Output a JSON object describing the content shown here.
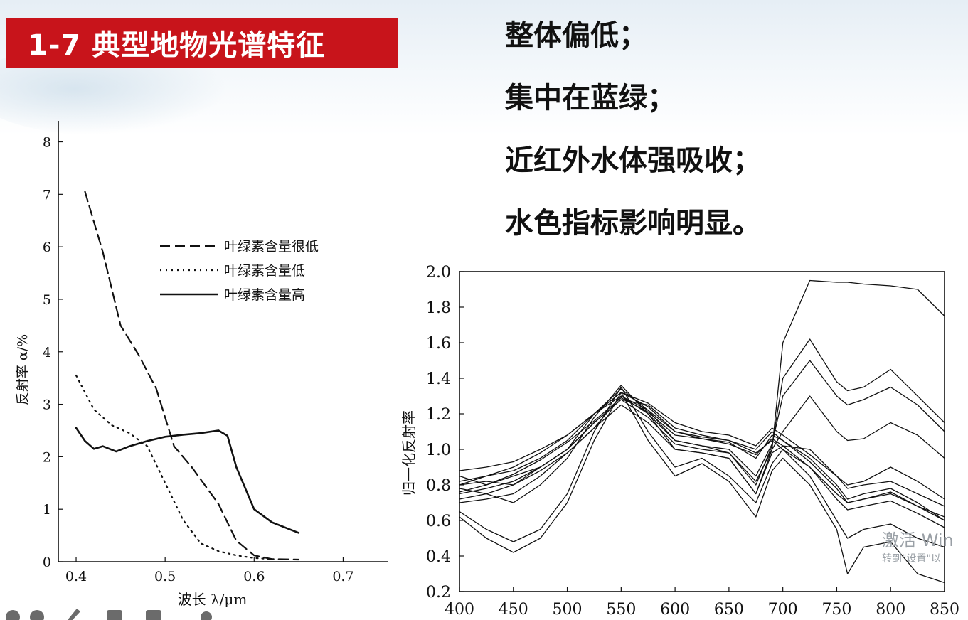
{
  "slide": {
    "title": "1-7 典型地物光谱特征",
    "bullets": [
      "整体偏低；",
      "集中在蓝绿；",
      "近红外水体强吸收；",
      "水色指标影响明显。"
    ],
    "colors": {
      "title_bg": "#c8141b",
      "title_text": "#ffffff",
      "text": "#111111"
    }
  },
  "watermark": {
    "line1": "激活 Win",
    "line2": "转到\"设置\"以"
  },
  "chart_data": [
    {
      "type": "line",
      "xlabel": "波长 λ/μm",
      "ylabel": "反射率 α/%",
      "xlim": [
        0.38,
        0.75
      ],
      "ylim": [
        0,
        8.4
      ],
      "xticks": [
        "0.4",
        "0.5",
        "0.6",
        "0.7"
      ],
      "yticks": [
        "0",
        "1",
        "2",
        "3",
        "4",
        "5",
        "6",
        "7",
        "8"
      ],
      "legend_position": "upper-right",
      "series": [
        {
          "name": "叶绿素含量很低",
          "style": "dashed",
          "x": [
            0.41,
            0.43,
            0.45,
            0.47,
            0.49,
            0.51,
            0.53,
            0.56,
            0.58,
            0.6,
            0.62,
            0.65
          ],
          "values": [
            7.05,
            5.9,
            4.5,
            3.95,
            3.3,
            2.2,
            1.8,
            1.1,
            0.4,
            0.12,
            0.05,
            0.04
          ]
        },
        {
          "name": "叶绿素含量低",
          "style": "dotted",
          "x": [
            0.4,
            0.42,
            0.44,
            0.46,
            0.48,
            0.5,
            0.52,
            0.54,
            0.56,
            0.58,
            0.6,
            0.62
          ],
          "values": [
            3.55,
            2.9,
            2.6,
            2.45,
            2.2,
            1.5,
            0.8,
            0.35,
            0.2,
            0.12,
            0.07,
            0.05
          ]
        },
        {
          "name": "叶绿素含量高",
          "style": "solid",
          "x": [
            0.4,
            0.41,
            0.42,
            0.43,
            0.445,
            0.46,
            0.48,
            0.5,
            0.52,
            0.54,
            0.56,
            0.57,
            0.58,
            0.6,
            0.62,
            0.65
          ],
          "values": [
            2.55,
            2.3,
            2.15,
            2.2,
            2.1,
            2.2,
            2.3,
            2.38,
            2.42,
            2.45,
            2.5,
            2.4,
            1.8,
            1.0,
            0.75,
            0.55
          ]
        }
      ]
    },
    {
      "type": "line",
      "xlabel": "",
      "ylabel": "归一化反射率",
      "xlim": [
        400,
        850
      ],
      "ylim": [
        0.2,
        2.0
      ],
      "xticks": [
        "400",
        "450",
        "500",
        "550",
        "600",
        "650",
        "700",
        "750",
        "800",
        "850"
      ],
      "yticks": [
        "0.2",
        "0.4",
        "0.6",
        "0.8",
        "1.0",
        "1.2",
        "1.4",
        "1.6",
        "1.8",
        "2.0"
      ],
      "x": [
        400,
        425,
        450,
        475,
        500,
        525,
        550,
        575,
        600,
        625,
        650,
        675,
        690,
        700,
        725,
        750,
        760,
        775,
        800,
        825,
        850
      ],
      "series": [
        {
          "values": [
            0.85,
            0.8,
            0.85,
            0.9,
            1.0,
            1.15,
            1.28,
            1.25,
            1.12,
            1.08,
            1.05,
            1.0,
            1.1,
            1.05,
            0.95,
            0.8,
            0.72,
            0.75,
            0.78,
            0.7,
            0.6
          ]
        },
        {
          "values": [
            0.72,
            0.75,
            0.8,
            0.88,
            0.98,
            1.12,
            1.3,
            1.22,
            1.1,
            1.07,
            1.05,
            0.98,
            1.05,
            1.0,
            0.9,
            0.75,
            0.7,
            0.72,
            0.75,
            0.68,
            0.62
          ]
        },
        {
          "values": [
            0.8,
            0.85,
            0.9,
            0.98,
            1.08,
            1.2,
            1.32,
            1.26,
            1.15,
            1.1,
            1.08,
            1.02,
            1.12,
            1.08,
            0.97,
            0.85,
            0.78,
            0.8,
            0.82,
            0.75,
            0.68
          ]
        },
        {
          "values": [
            0.65,
            0.55,
            0.48,
            0.55,
            0.75,
            1.1,
            1.35,
            1.1,
            0.9,
            0.95,
            0.85,
            0.7,
            0.92,
            1.0,
            0.85,
            0.6,
            0.5,
            0.55,
            0.58,
            0.5,
            0.45
          ]
        },
        {
          "values": [
            0.62,
            0.5,
            0.42,
            0.5,
            0.7,
            1.05,
            1.32,
            1.05,
            0.85,
            0.92,
            0.82,
            0.62,
            0.88,
            0.95,
            0.8,
            0.55,
            0.3,
            0.45,
            0.48,
            0.3,
            0.25
          ]
        },
        {
          "values": [
            0.78,
            0.75,
            0.7,
            0.8,
            0.95,
            1.18,
            1.36,
            1.2,
            1.0,
            0.98,
            0.95,
            0.75,
            1.0,
            1.6,
            1.95,
            1.94,
            1.94,
            1.93,
            1.92,
            1.9,
            1.75
          ]
        },
        {
          "values": [
            0.8,
            0.82,
            0.8,
            0.9,
            1.0,
            1.2,
            1.34,
            1.22,
            1.05,
            1.02,
            0.98,
            0.8,
            1.02,
            1.4,
            1.62,
            1.38,
            1.33,
            1.35,
            1.45,
            1.3,
            1.15
          ]
        },
        {
          "values": [
            0.82,
            0.85,
            0.88,
            0.95,
            1.05,
            1.2,
            1.3,
            1.2,
            1.05,
            1.02,
            1.0,
            0.85,
            1.03,
            1.3,
            1.5,
            1.3,
            1.25,
            1.28,
            1.35,
            1.25,
            1.1
          ]
        },
        {
          "values": [
            0.75,
            0.78,
            0.82,
            0.9,
            1.0,
            1.15,
            1.28,
            1.18,
            1.03,
            1.0,
            0.98,
            0.82,
            1.0,
            1.1,
            1.3,
            1.1,
            1.05,
            1.06,
            1.15,
            1.08,
            0.95
          ]
        },
        {
          "values": [
            0.7,
            0.72,
            0.75,
            0.85,
            0.98,
            1.12,
            1.25,
            1.15,
            1.0,
            0.98,
            0.95,
            0.75,
            0.98,
            1.02,
            1.0,
            0.85,
            0.8,
            0.82,
            0.9,
            0.82,
            0.72
          ]
        },
        {
          "values": [
            0.88,
            0.9,
            0.93,
            1.0,
            1.08,
            1.2,
            1.32,
            1.24,
            1.1,
            1.06,
            1.04,
            0.95,
            1.08,
            1.05,
            0.93,
            0.78,
            0.7,
            0.72,
            0.76,
            0.68,
            0.6
          ]
        },
        {
          "values": [
            0.76,
            0.8,
            0.86,
            0.94,
            1.04,
            1.16,
            1.29,
            1.21,
            1.08,
            1.06,
            1.03,
            0.97,
            1.06,
            1.02,
            0.9,
            0.72,
            0.66,
            0.68,
            0.71,
            0.64,
            0.56
          ]
        }
      ]
    }
  ]
}
